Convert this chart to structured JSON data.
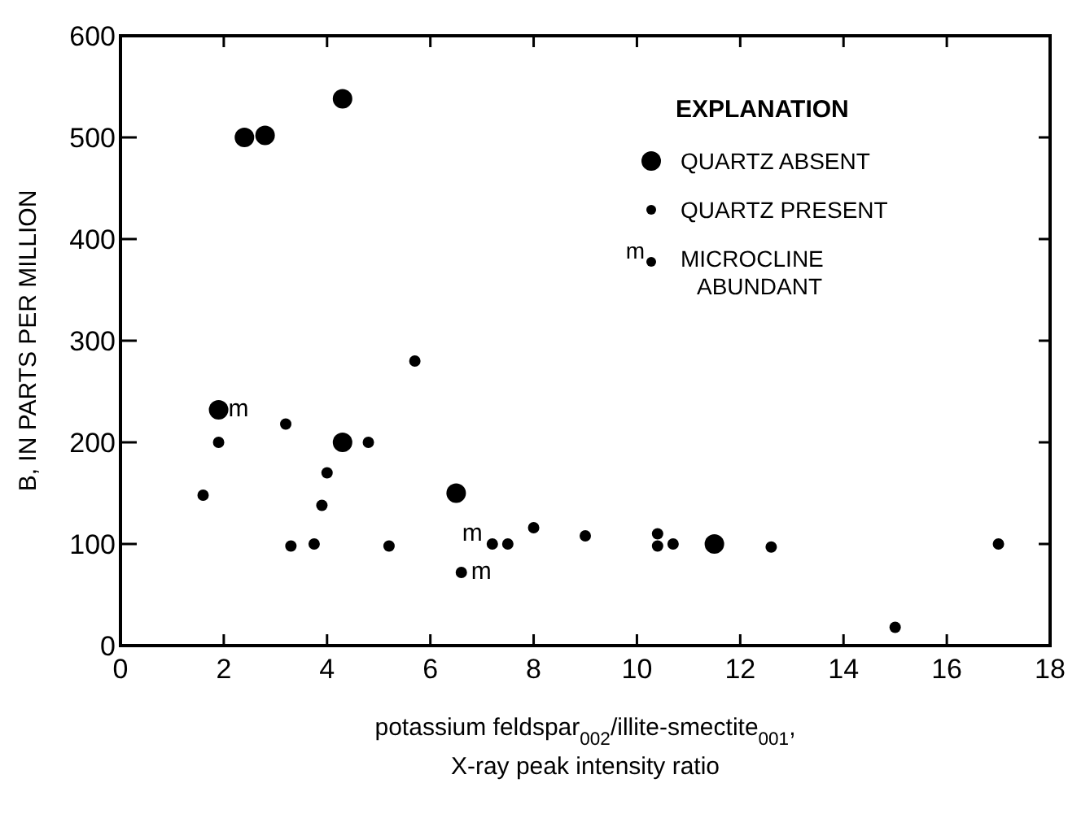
{
  "chart_data": {
    "type": "scatter",
    "xlabel": "potassium feldspar$_{002}$/illite-smectite$_{001}$, X-ray peak intensity ratio",
    "ylabel": "B, IN PARTS PER MILLION",
    "legend_title": "EXPLANATION",
    "legend": "top right",
    "marker": "circle",
    "grid": false,
    "xlim": [
      0,
      18
    ],
    "xticks": [
      0,
      2,
      4,
      6,
      8,
      10,
      12,
      14,
      16,
      18
    ],
    "ylim": [
      0,
      600
    ],
    "yticks": [
      0,
      100,
      200,
      300,
      400,
      500,
      600
    ],
    "series": [
      {
        "name": "QUARTZ ABSENT",
        "color": "#000000",
        "x": [
          2.4,
          2.8,
          4.3,
          1.9,
          4.3,
          6.5,
          11.5
        ],
        "values": [
          500,
          502,
          538,
          232,
          200,
          150,
          100
        ]
      },
      {
        "name": "QUARTZ PRESENT",
        "color": "#000000",
        "x": [
          1.6,
          1.9,
          3.2,
          3.3,
          3.75,
          3.9,
          4.0,
          4.8,
          5.2,
          5.7,
          6.6,
          7.2,
          7.5,
          8.0,
          9.0,
          10.4,
          10.4,
          10.7,
          12.6,
          15.0,
          17.0
        ],
        "values": [
          148,
          200,
          218,
          98,
          100,
          138,
          170,
          200,
          98,
          280,
          72,
          100,
          100,
          116,
          108,
          110,
          98,
          100,
          97,
          18,
          100
        ]
      }
    ],
    "annotations": [
      "MICROCLINE ABUNDANT",
      {
        "text": "m",
        "x": 1.9,
        "y": 232
      },
      {
        "text": "m",
        "x": 6.6,
        "y": 72
      },
      {
        "text": "m",
        "x": 7.2,
        "y": 100
      }
    ]
  }
}
